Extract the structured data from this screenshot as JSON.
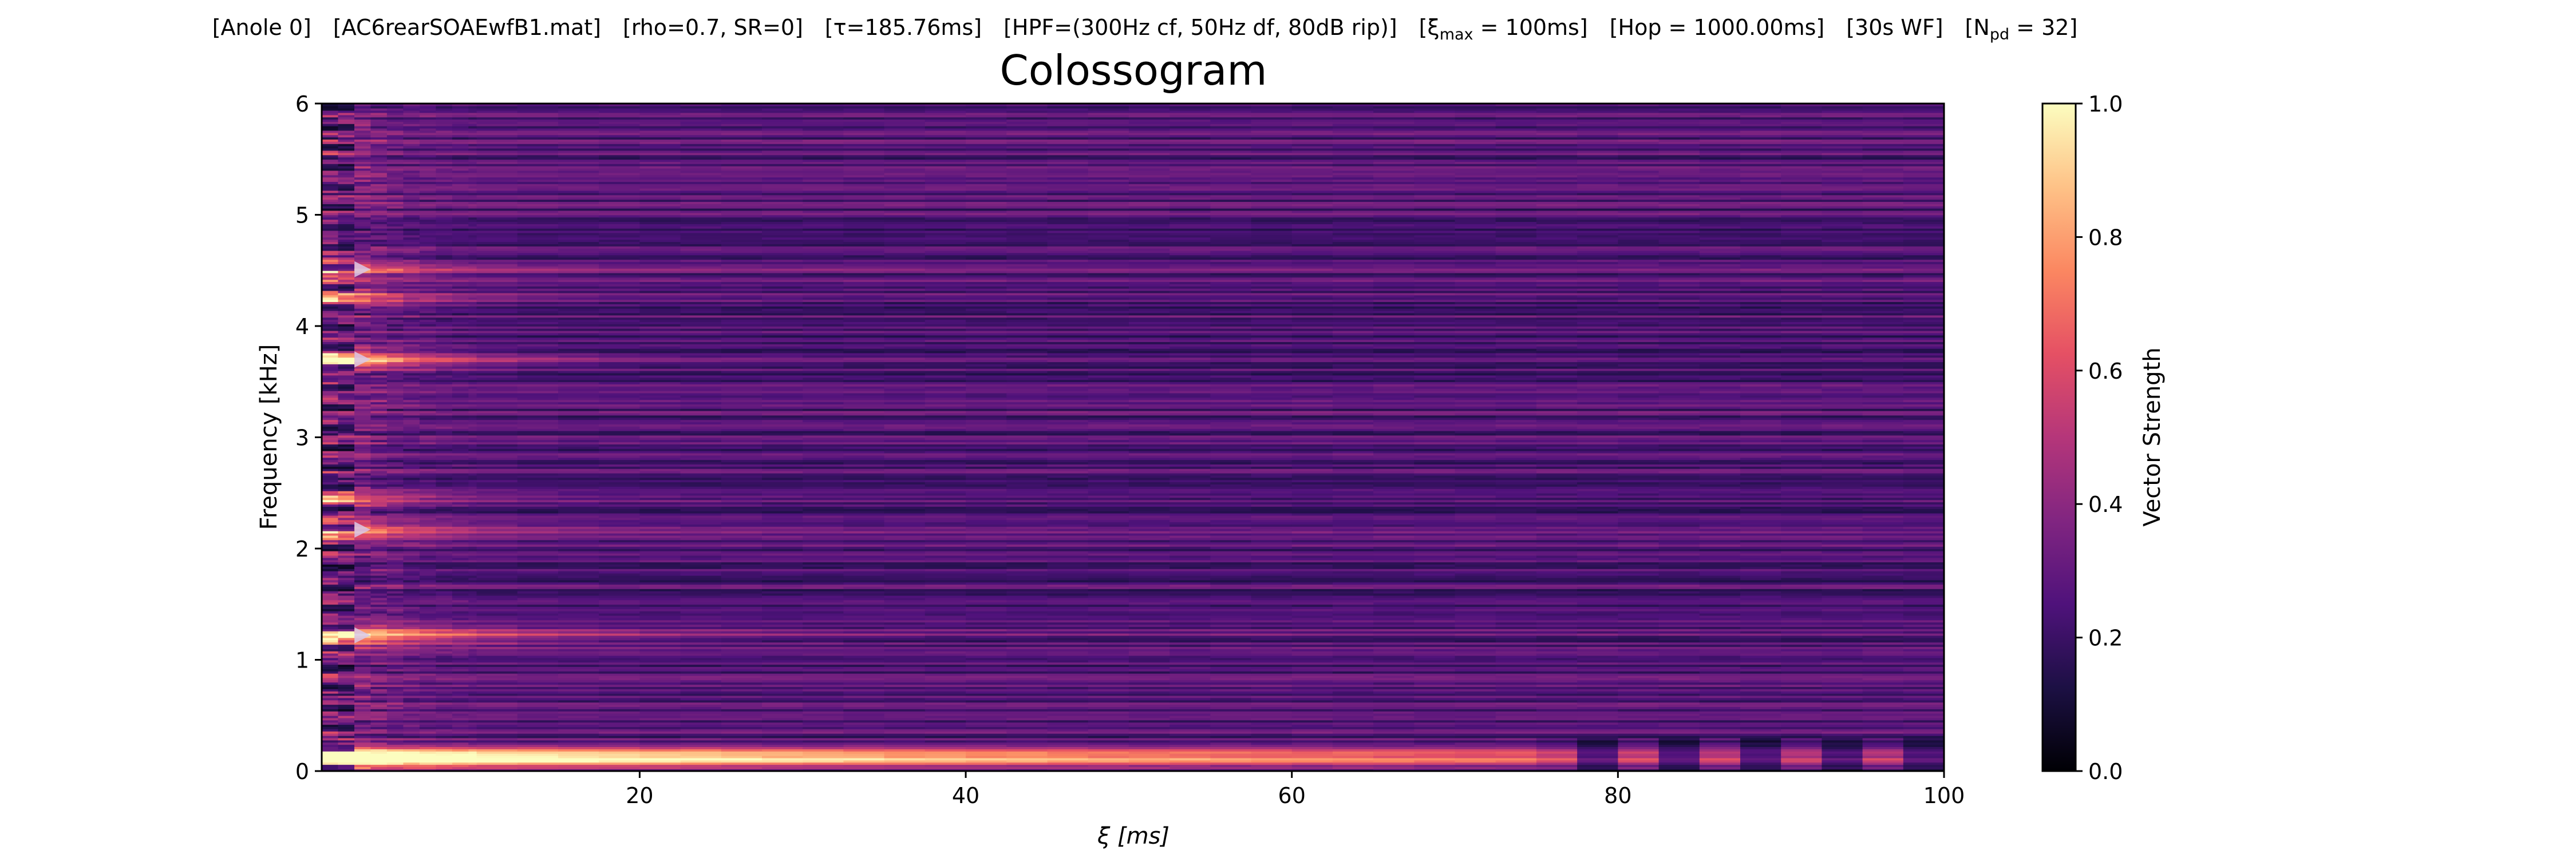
{
  "figure": {
    "suptitle_segments": [
      {
        "text": "[Anole 0]"
      },
      {
        "text": "[AC6rearSOAEwfB1.mat]"
      },
      {
        "text": "[rho=0.7, SR=0]"
      },
      {
        "text": "[τ=185.76ms]"
      },
      {
        "text": "[HPF=(300Hz cf, 50Hz df, 80dB rip)]"
      },
      {
        "text": "[ξ",
        "sub": "max",
        "after": " = 100ms]"
      },
      {
        "text": "[Hop = 1000.00ms]"
      },
      {
        "text": "[30s WF]"
      },
      {
        "text": "[N",
        "sub": "pd",
        "after": " = 32]"
      }
    ],
    "title": "Colossogram"
  },
  "chart_data": {
    "type": "heatmap",
    "title": "Colossogram",
    "xlabel": "ξ [ms]",
    "ylabel": "Frequency [kHz]",
    "xlim": [
      0.5,
      100
    ],
    "ylim": [
      0,
      6
    ],
    "xticks": [
      20,
      40,
      60,
      80,
      100
    ],
    "yticks": [
      0,
      1,
      2,
      3,
      4,
      5,
      6
    ],
    "colormap": "magma",
    "colorbar": {
      "label": "Vector Strength",
      "range": [
        0.0,
        1.0
      ],
      "ticks": [
        "0.0",
        "0.2",
        "0.4",
        "0.6",
        "0.8",
        "1.0"
      ]
    },
    "colorbar_stops": [
      "#000004",
      "#1c1044",
      "#4f127b",
      "#812581",
      "#b5367a",
      "#e55064",
      "#fb8761",
      "#fec287",
      "#fcfdbf"
    ],
    "markers": {
      "shape": "right-pointing triangle",
      "x_ms": 3,
      "freq_khz": [
        1.22,
        2.17,
        3.7,
        4.51
      ],
      "color": "#d9c7e8"
    },
    "ridges": [
      {
        "freq_khz": 0.12,
        "peak": 0.92,
        "decay_ms": 80
      },
      {
        "freq_khz": 1.22,
        "peak": 0.78,
        "decay_ms": 9
      },
      {
        "freq_khz": 2.17,
        "peak": 0.62,
        "decay_ms": 5
      },
      {
        "freq_khz": 2.45,
        "peak": 0.55,
        "decay_ms": 4
      },
      {
        "freq_khz": 3.7,
        "peak": 0.9,
        "decay_ms": 6
      },
      {
        "freq_khz": 4.25,
        "peak": 0.6,
        "decay_ms": 4
      },
      {
        "freq_khz": 4.51,
        "peak": 0.55,
        "decay_ms": 4
      }
    ],
    "background_level": 0.26
  }
}
